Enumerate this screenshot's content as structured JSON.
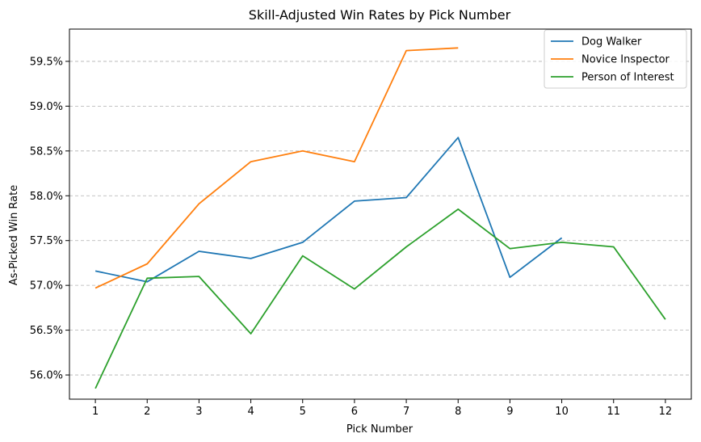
{
  "chart_data": {
    "type": "line",
    "title": "Skill-Adjusted Win Rates by Pick Number",
    "xlabel": "Pick Number",
    "ylabel": "As-Picked Win Rate",
    "xlim": [
      0.5,
      12.5
    ],
    "ylim": [
      55.73,
      59.86
    ],
    "x_ticks": [
      1,
      2,
      3,
      4,
      5,
      6,
      7,
      8,
      9,
      10,
      11,
      12
    ],
    "y_ticks": [
      56.0,
      56.5,
      57.0,
      57.5,
      58.0,
      58.5,
      59.0,
      59.5
    ],
    "y_tick_labels": [
      "56.0%",
      "56.5%",
      "57.0%",
      "57.5%",
      "58.0%",
      "58.5%",
      "59.0%",
      "59.5%"
    ],
    "grid": "horizontal dashed",
    "legend_position": "top-right",
    "series": [
      {
        "name": "Dog Walker",
        "color": "#1f77b4",
        "x": [
          1,
          2,
          3,
          4,
          5,
          6,
          7,
          8,
          9,
          10
        ],
        "values": [
          57.16,
          57.04,
          57.38,
          57.3,
          57.48,
          57.94,
          57.98,
          58.65,
          57.09,
          57.53
        ]
      },
      {
        "name": "Novice Inspector",
        "color": "#ff7f0e",
        "x": [
          1,
          2,
          3,
          4,
          5,
          6,
          7,
          8
        ],
        "values": [
          56.97,
          57.24,
          57.91,
          58.38,
          58.5,
          58.38,
          59.62,
          59.65
        ]
      },
      {
        "name": "Person of Interest",
        "color": "#2ca02c",
        "x": [
          1,
          2,
          3,
          4,
          5,
          6,
          7,
          8,
          9,
          10,
          11,
          12
        ],
        "values": [
          55.85,
          57.08,
          57.1,
          56.46,
          57.33,
          56.96,
          57.43,
          57.85,
          57.41,
          57.48,
          57.43,
          56.62
        ]
      }
    ]
  }
}
